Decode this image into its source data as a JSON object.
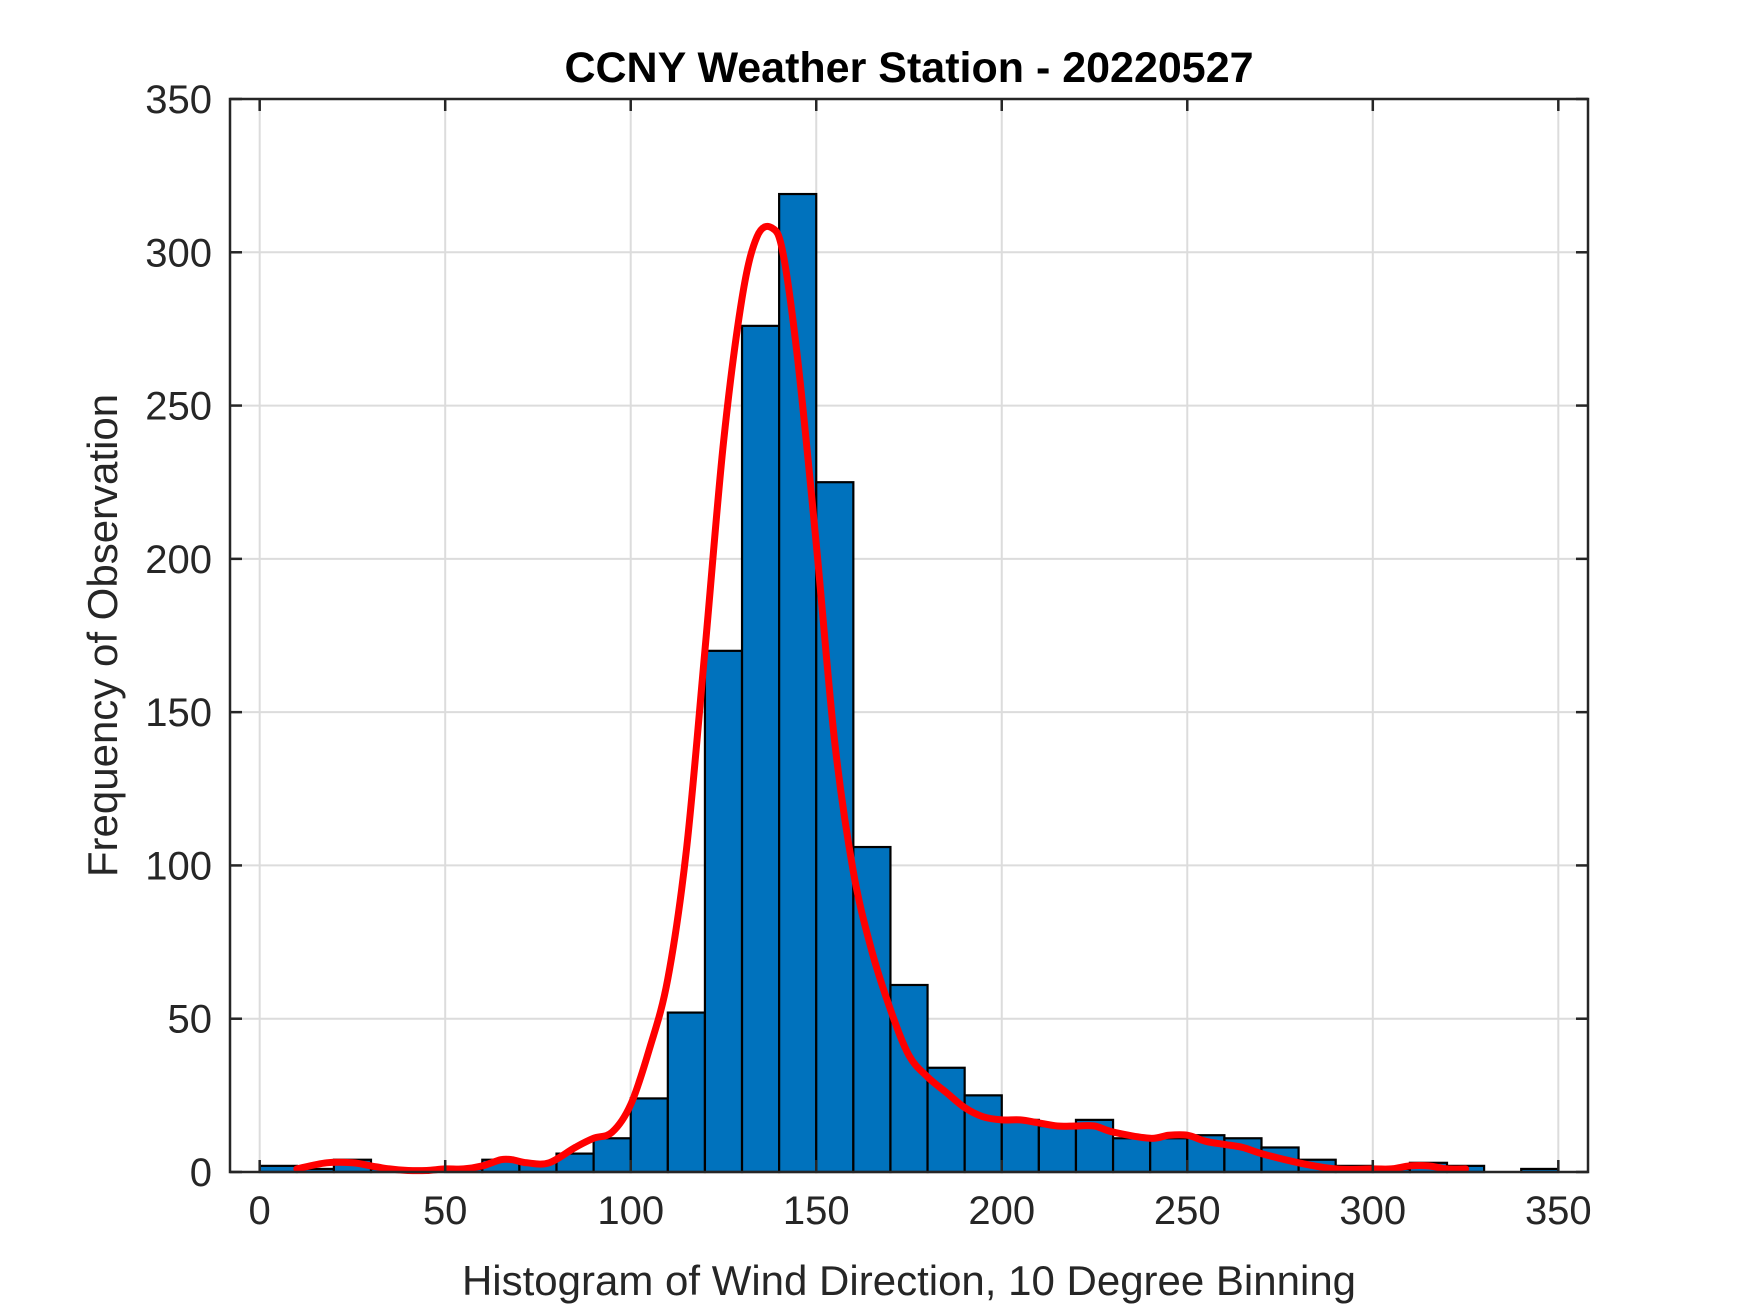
{
  "chart_data": {
    "type": "bar",
    "title": "CCNY Weather Station - 20220527",
    "xlabel": "Histogram of Wind Direction, 10 Degree Binning",
    "ylabel": "Frequency of Observation",
    "xlim": [
      -8,
      358
    ],
    "ylim": [
      0,
      350
    ],
    "xticks": [
      0,
      50,
      100,
      150,
      200,
      250,
      300,
      350
    ],
    "yticks": [
      0,
      50,
      100,
      150,
      200,
      250,
      300,
      350
    ],
    "grid": true,
    "bin_width": 10,
    "bins": [
      {
        "start": 0,
        "value": 2
      },
      {
        "start": 10,
        "value": 1
      },
      {
        "start": 20,
        "value": 4
      },
      {
        "start": 30,
        "value": 1
      },
      {
        "start": 40,
        "value": 0
      },
      {
        "start": 50,
        "value": 1
      },
      {
        "start": 60,
        "value": 4
      },
      {
        "start": 70,
        "value": 3
      },
      {
        "start": 80,
        "value": 6
      },
      {
        "start": 90,
        "value": 11
      },
      {
        "start": 100,
        "value": 24
      },
      {
        "start": 110,
        "value": 52
      },
      {
        "start": 120,
        "value": 170
      },
      {
        "start": 130,
        "value": 276
      },
      {
        "start": 140,
        "value": 319
      },
      {
        "start": 150,
        "value": 225
      },
      {
        "start": 160,
        "value": 106
      },
      {
        "start": 170,
        "value": 61
      },
      {
        "start": 180,
        "value": 34
      },
      {
        "start": 190,
        "value": 25
      },
      {
        "start": 200,
        "value": 17
      },
      {
        "start": 210,
        "value": 15
      },
      {
        "start": 220,
        "value": 17
      },
      {
        "start": 230,
        "value": 11
      },
      {
        "start": 240,
        "value": 11
      },
      {
        "start": 250,
        "value": 12
      },
      {
        "start": 260,
        "value": 11
      },
      {
        "start": 270,
        "value": 8
      },
      {
        "start": 280,
        "value": 4
      },
      {
        "start": 290,
        "value": 2
      },
      {
        "start": 300,
        "value": 1
      },
      {
        "start": 310,
        "value": 3
      },
      {
        "start": 320,
        "value": 2
      },
      {
        "start": 330,
        "value": 0
      },
      {
        "start": 340,
        "value": 1
      }
    ],
    "fit_curve": {
      "x": [
        10,
        18,
        25,
        30,
        35,
        40,
        45,
        50,
        55,
        60,
        65,
        68,
        72,
        78,
        85,
        90,
        95,
        100,
        105,
        110,
        115,
        120,
        125,
        130,
        134,
        138,
        141,
        145,
        150,
        155,
        160,
        165,
        170,
        175,
        180,
        185,
        190,
        195,
        200,
        205,
        210,
        215,
        220,
        225,
        230,
        240,
        245,
        250,
        255,
        260,
        265,
        270,
        280,
        290,
        300,
        305,
        310,
        315,
        320,
        325
      ],
      "y": [
        1,
        3,
        3,
        2,
        1,
        0.5,
        0.5,
        1,
        1,
        2,
        4,
        4,
        3,
        3,
        8,
        11,
        13,
        22,
        40,
        63,
        105,
        170,
        238,
        285,
        305,
        308,
        300,
        265,
        205,
        140,
        98,
        72,
        53,
        38,
        31,
        26,
        21,
        18,
        17,
        17,
        16,
        15,
        15,
        15,
        13,
        11,
        12,
        12,
        10,
        9,
        8,
        6,
        3,
        1,
        1,
        1,
        2,
        2,
        1,
        1
      ],
      "color": "#ff0000"
    },
    "bar_color": "#0072bd",
    "bar_edge_color": "#000000"
  }
}
